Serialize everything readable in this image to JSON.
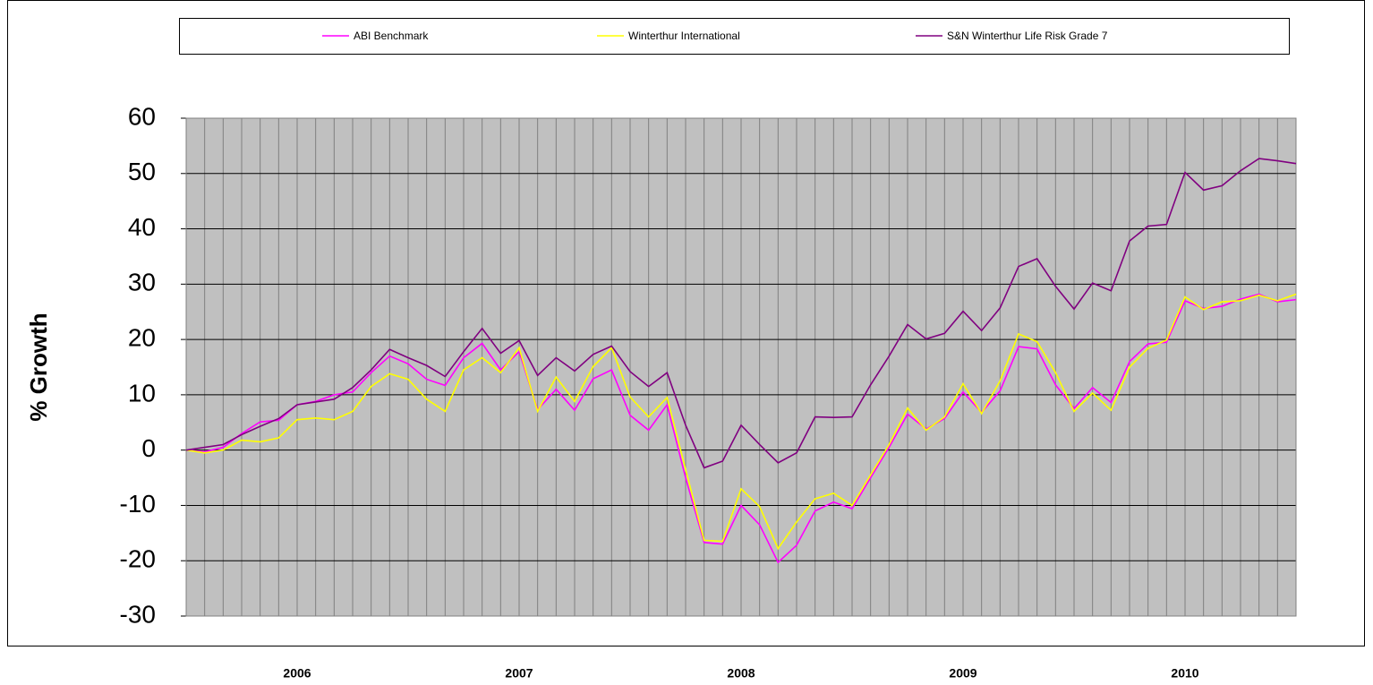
{
  "chart_data": {
    "type": "line",
    "y_label": "% Growth",
    "legend": "top",
    "grid": true,
    "plot_background": "#c0c0c0",
    "ylim": [
      -30,
      60
    ],
    "yticks": [
      -30,
      -20,
      -10,
      0,
      10,
      20,
      30,
      40,
      50,
      60
    ],
    "categories": [
      null,
      null,
      null,
      null,
      null,
      null,
      "2006",
      null,
      null,
      null,
      null,
      null,
      null,
      null,
      null,
      null,
      null,
      null,
      "2007",
      null,
      null,
      null,
      null,
      null,
      null,
      null,
      null,
      null,
      null,
      null,
      "2008",
      null,
      null,
      null,
      null,
      null,
      null,
      null,
      null,
      null,
      null,
      null,
      "2009",
      null,
      null,
      null,
      null,
      null,
      null,
      null,
      null,
      null,
      null,
      null,
      "2010",
      null,
      null,
      null,
      null,
      null,
      null
    ],
    "series": [
      {
        "name": "ABI Benchmark",
        "color": "#ff00ff",
        "values": [
          0,
          -0.3,
          0.5,
          3,
          5.1,
          5.4,
          8.2,
          8.8,
          10,
          10.5,
          14,
          17,
          15.6,
          12.8,
          11.7,
          16.7,
          19.3,
          14.5,
          17.8,
          7.3,
          11,
          7.2,
          12.9,
          14.5,
          6.3,
          3.6,
          8.2,
          -5,
          -16.7,
          -17,
          -10,
          -13.5,
          -20.3,
          -17.2,
          -11,
          -9.4,
          -10.6,
          -5,
          0.5,
          6.5,
          3.8,
          5.7,
          10.5,
          6.8,
          10.7,
          18.7,
          18.3,
          11.8,
          7.5,
          11.3,
          8.6,
          16,
          19.2,
          19.5,
          27,
          25.6,
          26,
          27.3,
          28.2,
          26.8,
          27.2
        ]
      },
      {
        "name": "Winterthur International",
        "color": "#ffff00",
        "values": [
          0,
          -0.5,
          0,
          1.8,
          1.5,
          2.2,
          5.5,
          5.8,
          5.5,
          7,
          11.5,
          13.8,
          12.8,
          9.2,
          7,
          14.5,
          16.7,
          14,
          18.5,
          7,
          13.2,
          8.8,
          15.1,
          18.5,
          9.6,
          6,
          9.5,
          -3.5,
          -16.3,
          -16.5,
          -7,
          -10.2,
          -17.8,
          -13,
          -8.8,
          -7.8,
          -10,
          -4.5,
          1,
          7.6,
          3.6,
          6,
          12,
          6.6,
          12.5,
          21,
          19.6,
          14,
          7,
          10.3,
          7.2,
          15,
          18.4,
          19.9,
          27.7,
          25.4,
          26.8,
          27,
          28,
          27,
          28.2
        ]
      },
      {
        "name": "S&N Winterthur Life Risk Grade 7",
        "color": "#800080",
        "values": [
          0,
          0.5,
          1,
          2.8,
          4.3,
          5.7,
          8.2,
          8.7,
          9.2,
          11.3,
          14.5,
          18.2,
          16.7,
          15.3,
          13.3,
          17.8,
          22,
          17.5,
          19.8,
          13.5,
          16.7,
          14.3,
          17.3,
          18.8,
          14.2,
          11.5,
          14,
          4.5,
          -3.2,
          -2,
          4.5,
          1,
          -2.3,
          -0.5,
          6,
          5.9,
          6,
          11.8,
          17,
          22.7,
          20.1,
          21.1,
          25.1,
          21.6,
          25.7,
          33.2,
          34.6,
          29.6,
          25.5,
          30.2,
          28.8,
          37.8,
          40.5,
          40.8,
          50.2,
          47,
          47.8,
          50.5,
          52.7,
          52.3,
          51.8
        ]
      }
    ]
  }
}
